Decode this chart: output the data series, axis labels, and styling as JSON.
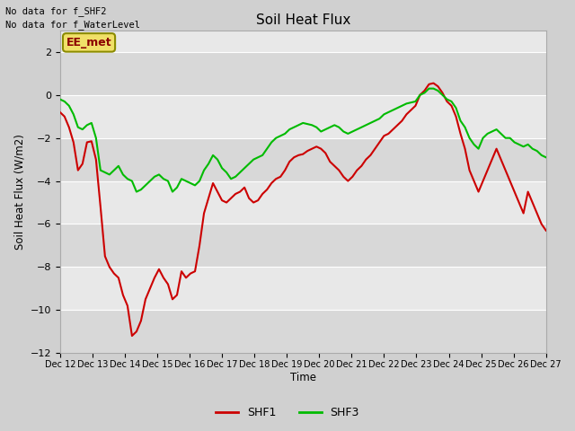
{
  "title": "Soil Heat Flux",
  "ylabel": "Soil Heat Flux (W/m2)",
  "xlabel": "Time",
  "note1": "No data for f_SHF2",
  "note2": "No data for f_WaterLevel",
  "legend_box_label": "EE_met",
  "ylim": [
    -12,
    3
  ],
  "yticks": [
    -12,
    -10,
    -8,
    -6,
    -4,
    -2,
    0,
    2
  ],
  "xtick_labels": [
    "Dec 12",
    "Dec 13",
    "Dec 14",
    "Dec 15",
    "Dec 16",
    "Dec 17",
    "Dec 18",
    "Dec 19",
    "Dec 20",
    "Dec 21",
    "Dec 22",
    "Dec 23",
    "Dec 24",
    "Dec 25",
    "Dec 26",
    "Dec 27"
  ],
  "shf1_color": "#cc0000",
  "shf3_color": "#00bb00",
  "fig_facecolor": "#d0d0d0",
  "plot_facecolor": "#e8e8e8",
  "band_dark": "#d8d8d8",
  "band_light": "#e8e8e8",
  "shf1": [
    -0.8,
    -1.0,
    -1.5,
    -2.2,
    -3.5,
    -3.2,
    -2.2,
    -2.15,
    -3.0,
    -5.2,
    -7.5,
    -8.0,
    -8.3,
    -8.5,
    -9.3,
    -9.8,
    -11.2,
    -11.0,
    -10.5,
    -9.5,
    -9.0,
    -8.5,
    -8.1,
    -8.5,
    -8.8,
    -9.5,
    -9.3,
    -8.2,
    -8.5,
    -8.3,
    -8.2,
    -7.0,
    -5.5,
    -4.8,
    -4.1,
    -4.5,
    -4.9,
    -5.0,
    -4.8,
    -4.6,
    -4.5,
    -4.3,
    -4.8,
    -5.0,
    -4.9,
    -4.6,
    -4.4,
    -4.1,
    -3.9,
    -3.8,
    -3.5,
    -3.1,
    -2.9,
    -2.8,
    -2.75,
    -2.6,
    -2.5,
    -2.4,
    -2.5,
    -2.7,
    -3.1,
    -3.3,
    -3.5,
    -3.8,
    -4.0,
    -3.8,
    -3.5,
    -3.3,
    -3.0,
    -2.8,
    -2.5,
    -2.2,
    -1.9,
    -1.8,
    -1.6,
    -1.4,
    -1.2,
    -0.9,
    -0.7,
    -0.5,
    0.0,
    0.2,
    0.5,
    0.55,
    0.4,
    0.1,
    -0.3,
    -0.5,
    -1.0,
    -1.8,
    -2.5,
    -3.5,
    -4.0,
    -4.5,
    -4.0,
    -3.5,
    -3.0,
    -2.5,
    -3.0,
    -3.5,
    -4.0,
    -4.5,
    -5.0,
    -5.5,
    -4.5,
    -5.0,
    -5.5,
    -6.0,
    -6.3
  ],
  "shf3": [
    -0.2,
    -0.3,
    -0.5,
    -0.9,
    -1.5,
    -1.6,
    -1.4,
    -1.3,
    -2.0,
    -3.5,
    -3.6,
    -3.7,
    -3.5,
    -3.3,
    -3.7,
    -3.9,
    -4.0,
    -4.5,
    -4.4,
    -4.2,
    -4.0,
    -3.8,
    -3.7,
    -3.9,
    -4.0,
    -4.5,
    -4.3,
    -3.9,
    -4.0,
    -4.1,
    -4.2,
    -4.0,
    -3.5,
    -3.2,
    -2.8,
    -3.0,
    -3.4,
    -3.6,
    -3.9,
    -3.8,
    -3.6,
    -3.4,
    -3.2,
    -3.0,
    -2.9,
    -2.8,
    -2.5,
    -2.2,
    -2.0,
    -1.9,
    -1.8,
    -1.6,
    -1.5,
    -1.4,
    -1.3,
    -1.35,
    -1.4,
    -1.5,
    -1.7,
    -1.6,
    -1.5,
    -1.4,
    -1.5,
    -1.7,
    -1.8,
    -1.7,
    -1.6,
    -1.5,
    -1.4,
    -1.3,
    -1.2,
    -1.1,
    -0.9,
    -0.8,
    -0.7,
    -0.6,
    -0.5,
    -0.4,
    -0.35,
    -0.3,
    0.0,
    0.1,
    0.3,
    0.3,
    0.2,
    0.0,
    -0.2,
    -0.3,
    -0.6,
    -1.2,
    -1.5,
    -2.0,
    -2.3,
    -2.5,
    -2.0,
    -1.8,
    -1.7,
    -1.6,
    -1.8,
    -2.0,
    -2.0,
    -2.2,
    -2.3,
    -2.4,
    -2.3,
    -2.5,
    -2.6,
    -2.8,
    -2.9
  ]
}
